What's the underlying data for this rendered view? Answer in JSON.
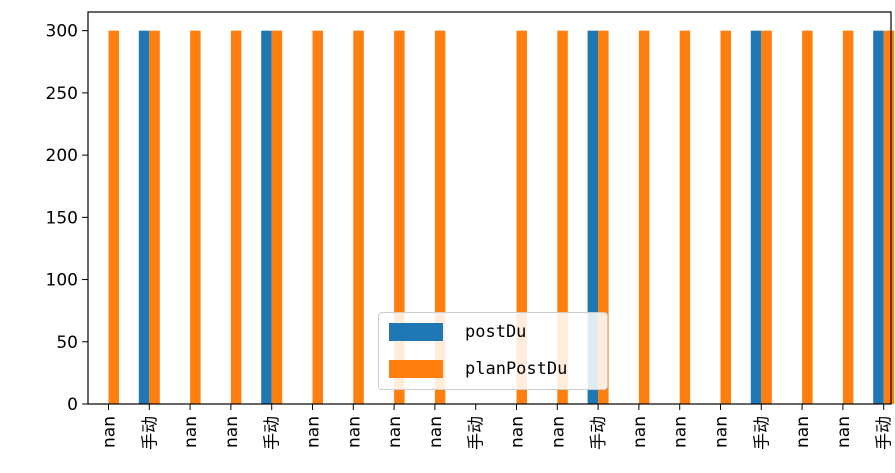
{
  "chart_data": {
    "type": "bar",
    "categories": [
      "nan",
      "手动",
      "nan",
      "nan",
      "手动",
      "nan",
      "nan",
      "nan",
      "nan",
      "手动",
      "nan",
      "nan",
      "手动",
      "nan",
      "nan",
      "nan",
      "手动",
      "nan",
      "nan",
      "手动"
    ],
    "series": [
      {
        "name": "postDu",
        "color": "#1f77b4",
        "values": [
          null,
          300,
          null,
          null,
          300,
          null,
          null,
          null,
          null,
          null,
          null,
          null,
          300,
          null,
          null,
          null,
          300,
          null,
          null,
          300
        ]
      },
      {
        "name": "planPostDu",
        "color": "#ff7f0e",
        "values": [
          300,
          300,
          300,
          300,
          300,
          300,
          300,
          300,
          300,
          null,
          300,
          300,
          300,
          300,
          300,
          300,
          300,
          300,
          300,
          300
        ]
      }
    ],
    "yticks": [
      0,
      50,
      100,
      150,
      200,
      250,
      300
    ],
    "ylim": [
      0,
      315
    ],
    "legend_position": "lower center"
  }
}
